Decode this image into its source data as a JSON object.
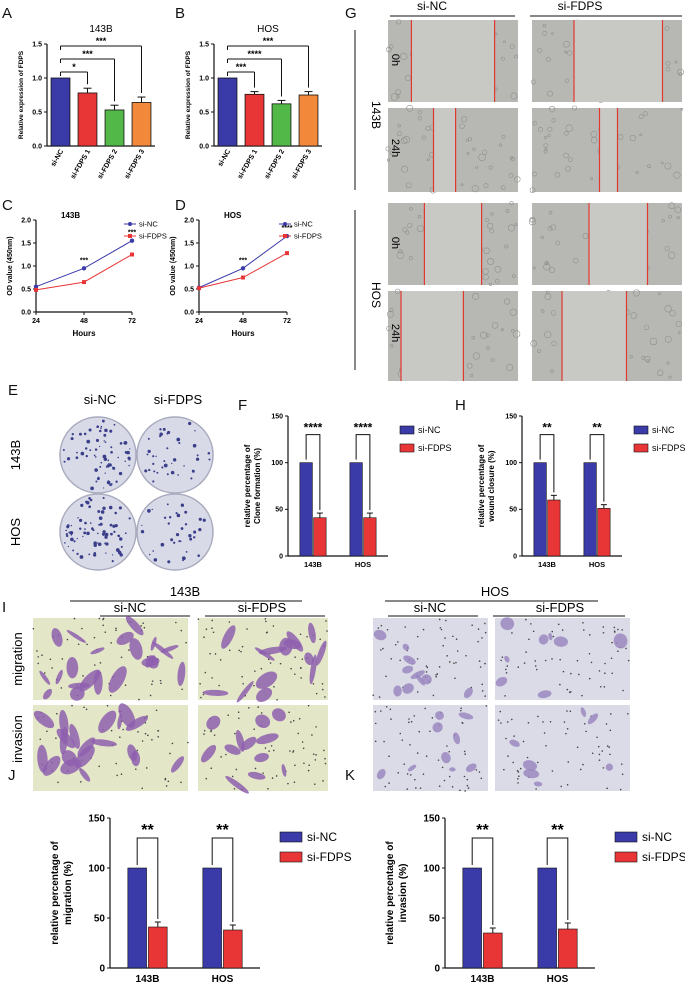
{
  "panels": {
    "A": {
      "letter": "A",
      "title": "143B",
      "ylabel": "Relative expression of FDPS",
      "categories": [
        "si-NC",
        "si-FDPS 1",
        "si-FDPS 2",
        "si-FDPS 3"
      ],
      "values": [
        1.0,
        0.78,
        0.53,
        0.64
      ],
      "errors": [
        0,
        0.07,
        0.07,
        0.08
      ],
      "colors": [
        "#3a3aa8",
        "#e83535",
        "#52b848",
        "#f1883a"
      ],
      "ylim": [
        0,
        1.5
      ],
      "yticks": [
        "0.0",
        "0.5",
        "1.0",
        "1.5"
      ],
      "sig": [
        "*",
        "***",
        "***"
      ]
    },
    "B": {
      "letter": "B",
      "title": "HOS",
      "ylabel": "Relative expression of FDPS",
      "categories": [
        "si-NC",
        "si-FDPS 1",
        "si-FDPS 2",
        "si-FDPS 3"
      ],
      "values": [
        1.0,
        0.76,
        0.62,
        0.75
      ],
      "errors": [
        0,
        0.04,
        0.05,
        0.05
      ],
      "colors": [
        "#3a3aa8",
        "#e83535",
        "#52b848",
        "#f1883a"
      ],
      "ylim": [
        0,
        1.5
      ],
      "yticks": [
        "0.0",
        "0.5",
        "1.0",
        "1.5"
      ],
      "sig": [
        "***",
        "****",
        "***"
      ]
    },
    "C": {
      "letter": "C",
      "title": "143B",
      "ylabel": "OD value (450nm)",
      "xlabel": "Hours",
      "x": [
        "24",
        "48",
        "72"
      ],
      "yticks": [
        "0.0",
        "0.5",
        "1.0",
        "1.5",
        "2.0"
      ],
      "ylim": [
        0,
        2.0
      ],
      "series": [
        {
          "name": "si-NC",
          "values": [
            0.55,
            0.95,
            1.55
          ],
          "color": "#3a3aa8"
        },
        {
          "name": "si-FDPS",
          "values": [
            0.48,
            0.65,
            1.25
          ],
          "color": "#e83535"
        }
      ],
      "sig": [
        "***",
        "***"
      ]
    },
    "D": {
      "letter": "D",
      "title": "HOS",
      "ylabel": "OD value (450nm)",
      "xlabel": "Hours",
      "x": [
        "24",
        "48",
        "72"
      ],
      "yticks": [
        "0.0",
        "0.5",
        "1.0",
        "1.5",
        "2.0"
      ],
      "ylim": [
        0,
        2.0
      ],
      "series": [
        {
          "name": "si-NC",
          "values": [
            0.53,
            0.95,
            1.65
          ],
          "color": "#3a3aa8"
        },
        {
          "name": "si-FDPS",
          "values": [
            0.52,
            0.75,
            1.28
          ],
          "color": "#e83535"
        }
      ],
      "sig": [
        "***",
        "****"
      ]
    },
    "E": {
      "letter": "E",
      "cols": [
        "si-NC",
        "si-FDPS"
      ],
      "rows": [
        "143B",
        "HOS"
      ]
    },
    "F": {
      "letter": "F",
      "ylabel": "relative percentage of Clone formation (%)",
      "categories": [
        "143B",
        "HOS"
      ],
      "series": [
        {
          "name": "si-NC",
          "values": [
            100,
            100
          ]
        },
        {
          "name": "si-FDPS",
          "values": [
            41,
            41
          ]
        }
      ],
      "errors": [
        5,
        5
      ],
      "yticks": [
        "0",
        "50",
        "100",
        "150"
      ],
      "ylim": [
        0,
        150
      ],
      "sig": [
        "****",
        "****"
      ]
    },
    "G": {
      "letter": "G",
      "cols": [
        "si-NC",
        "si-FDPS"
      ],
      "rows": [
        "0h",
        "24h",
        "0h",
        "24h"
      ],
      "groups": [
        "143B",
        "HOS"
      ]
    },
    "H": {
      "letter": "H",
      "ylabel": "relative percentage of wound closure (%)",
      "categories": [
        "143B",
        "HOS"
      ],
      "series": [
        {
          "name": "si-NC",
          "values": [
            100,
            100
          ]
        },
        {
          "name": "si-FDPS",
          "values": [
            60,
            51
          ]
        }
      ],
      "errors": [
        5,
        4
      ],
      "yticks": [
        "0",
        "50",
        "100",
        "150"
      ],
      "ylim": [
        0,
        150
      ],
      "sig": [
        "**",
        "**"
      ]
    },
    "I": {
      "letter": "I",
      "groups": [
        "143B",
        "HOS"
      ],
      "cols": [
        "si-NC",
        "si-FDPS",
        "si-NC",
        "si-FDPS"
      ],
      "rows": [
        "migration",
        "invasion"
      ]
    },
    "J": {
      "letter": "J",
      "ylabel": "relative percentage of migration (%)",
      "categories": [
        "143B",
        "HOS"
      ],
      "series": [
        {
          "name": "si-NC",
          "values": [
            100,
            100
          ]
        },
        {
          "name": "si-FDPS",
          "values": [
            41,
            38
          ]
        }
      ],
      "errors": [
        5,
        5
      ],
      "yticks": [
        "0",
        "50",
        "100",
        "150"
      ],
      "ylim": [
        0,
        150
      ],
      "sig": [
        "**",
        "**"
      ]
    },
    "K": {
      "letter": "K",
      "ylabel": "relative percentage of invasion (%)",
      "categories": [
        "143B",
        "HOS"
      ],
      "series": [
        {
          "name": "si-NC",
          "values": [
            100,
            100
          ]
        },
        {
          "name": "si-FDPS",
          "values": [
            35,
            39
          ]
        }
      ],
      "errors": [
        5,
        6
      ],
      "yticks": [
        "0",
        "50",
        "100",
        "150"
      ],
      "ylim": [
        0,
        150
      ],
      "sig": [
        "**",
        "**"
      ]
    }
  },
  "colors": {
    "nc": "#3a3aa8",
    "fdps": "#e83535",
    "wound_line": "#e0392f"
  }
}
